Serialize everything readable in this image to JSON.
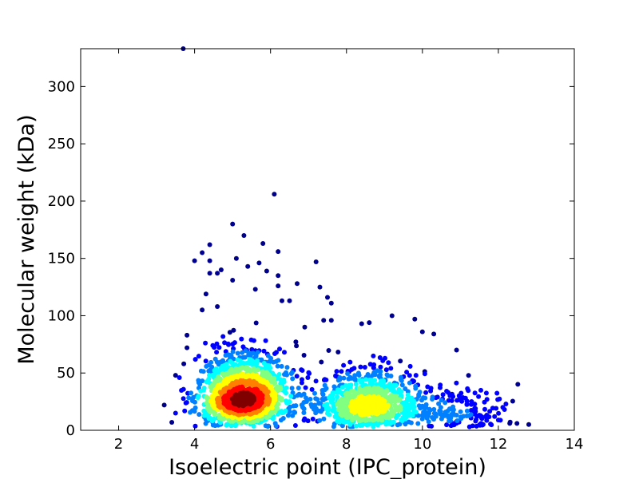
{
  "chart_data": {
    "type": "scatter",
    "title": "",
    "xlabel": "Isoelectric point (IPC_protein)",
    "ylabel": "Molecular weight (kDa)",
    "xlim": [
      1,
      14
    ],
    "ylim": [
      0,
      333
    ],
    "xticks": [
      2,
      4,
      6,
      8,
      10,
      12,
      14
    ],
    "yticks": [
      0,
      50,
      100,
      150,
      200,
      250,
      300
    ],
    "grid": false,
    "legend": "none",
    "colormap": [
      "#00008f",
      "#0000ff",
      "#0080ff",
      "#00ffff",
      "#80ff80",
      "#ffff00",
      "#ff8000",
      "#ff0000",
      "#800000"
    ],
    "density_clusters": [
      {
        "center_x": 5.3,
        "center_y": 30,
        "spread_x": 0.55,
        "spread_y": 14,
        "count": 1500,
        "peak_density": "high"
      },
      {
        "center_x": 8.6,
        "center_y": 22,
        "spread_x": 0.7,
        "spread_y": 11,
        "count": 900,
        "peak_density": "medium"
      },
      {
        "center_x": 11.0,
        "center_y": 15,
        "spread_x": 0.6,
        "spread_y": 8,
        "count": 140,
        "peak_density": "low"
      }
    ],
    "outliers": [
      {
        "x": 3.7,
        "y": 333
      },
      {
        "x": 6.1,
        "y": 206
      },
      {
        "x": 5.0,
        "y": 180
      },
      {
        "x": 5.3,
        "y": 170
      },
      {
        "x": 5.8,
        "y": 163
      },
      {
        "x": 4.4,
        "y": 162
      },
      {
        "x": 6.2,
        "y": 156
      },
      {
        "x": 4.2,
        "y": 155
      },
      {
        "x": 5.1,
        "y": 150
      },
      {
        "x": 4.0,
        "y": 148
      },
      {
        "x": 4.4,
        "y": 148
      },
      {
        "x": 7.2,
        "y": 147
      },
      {
        "x": 5.7,
        "y": 146
      },
      {
        "x": 4.7,
        "y": 140
      },
      {
        "x": 5.4,
        "y": 143
      },
      {
        "x": 4.6,
        "y": 137
      },
      {
        "x": 5.9,
        "y": 139
      },
      {
        "x": 4.4,
        "y": 137
      },
      {
        "x": 6.2,
        "y": 135
      },
      {
        "x": 5.0,
        "y": 131
      },
      {
        "x": 6.7,
        "y": 128
      },
      {
        "x": 6.2,
        "y": 126
      },
      {
        "x": 7.3,
        "y": 125
      },
      {
        "x": 5.6,
        "y": 123
      },
      {
        "x": 4.3,
        "y": 119
      },
      {
        "x": 7.5,
        "y": 116
      },
      {
        "x": 6.3,
        "y": 113
      },
      {
        "x": 6.5,
        "y": 113
      },
      {
        "x": 7.6,
        "y": 111
      },
      {
        "x": 4.6,
        "y": 108
      },
      {
        "x": 4.2,
        "y": 105
      },
      {
        "x": 9.2,
        "y": 100
      },
      {
        "x": 7.4,
        "y": 96
      },
      {
        "x": 7.6,
        "y": 96
      },
      {
        "x": 9.8,
        "y": 97
      },
      {
        "x": 8.6,
        "y": 94
      },
      {
        "x": 8.4,
        "y": 93
      },
      {
        "x": 6.9,
        "y": 90
      },
      {
        "x": 10.0,
        "y": 86
      },
      {
        "x": 10.3,
        "y": 84
      },
      {
        "x": 3.8,
        "y": 83
      },
      {
        "x": 3.8,
        "y": 72
      },
      {
        "x": 10.9,
        "y": 70
      },
      {
        "x": 3.5,
        "y": 48
      },
      {
        "x": 3.6,
        "y": 46
      },
      {
        "x": 3.2,
        "y": 22
      },
      {
        "x": 3.5,
        "y": 15
      },
      {
        "x": 11.7,
        "y": 27
      },
      {
        "x": 12.2,
        "y": 23
      },
      {
        "x": 11.9,
        "y": 12
      },
      {
        "x": 12.0,
        "y": 9
      },
      {
        "x": 12.3,
        "y": 6
      },
      {
        "x": 12.8,
        "y": 5
      },
      {
        "x": 11.4,
        "y": 8
      },
      {
        "x": 11.6,
        "y": 5
      },
      {
        "x": 3.4,
        "y": 7
      }
    ]
  }
}
